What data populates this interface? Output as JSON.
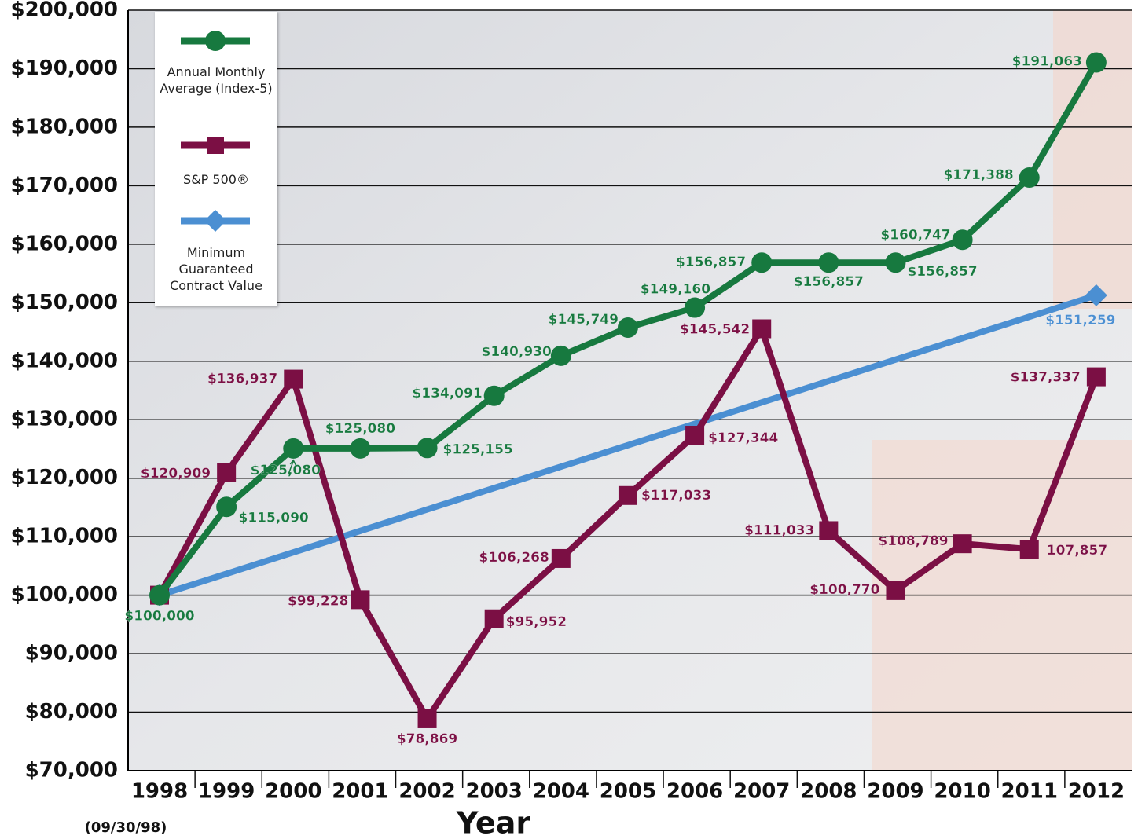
{
  "chart_data": {
    "type": "line",
    "x_label": "Year",
    "note": "(09/30/98)",
    "categories": [
      "1998",
      "1999",
      "2000",
      "2001",
      "2002",
      "2003",
      "2004",
      "2005",
      "2006",
      "2007",
      "2008",
      "2009",
      "2010",
      "2011",
      "2012"
    ],
    "ylim": [
      70000,
      200000
    ],
    "yticks": [
      {
        "value": 70000,
        "label": "$70,000"
      },
      {
        "value": 80000,
        "label": "$80,000"
      },
      {
        "value": 90000,
        "label": "$90,000"
      },
      {
        "value": 100000,
        "label": "$100,000"
      },
      {
        "value": 110000,
        "label": "$110,000"
      },
      {
        "value": 120000,
        "label": "$120,000"
      },
      {
        "value": 130000,
        "label": "$130,000"
      },
      {
        "value": 140000,
        "label": "$140,000"
      },
      {
        "value": 150000,
        "label": "$150,000"
      },
      {
        "value": 160000,
        "label": "$160,000"
      },
      {
        "value": 170000,
        "label": "$170,000"
      },
      {
        "value": 180000,
        "label": "$180,000"
      },
      {
        "value": 190000,
        "label": "$190,000"
      },
      {
        "value": 200000,
        "label": "$200,000"
      }
    ],
    "grid": true,
    "legend": "top-left",
    "series": [
      {
        "name": "Annual Monthly Average (Index-5)",
        "color": "#17793f",
        "marker": "circle",
        "values": [
          100000,
          115090,
          125080,
          125080,
          125155,
          134091,
          140930,
          145749,
          149160,
          156857,
          156857,
          156857,
          160747,
          171388,
          191063
        ],
        "value_labels": [
          "$100,000",
          "$115,090",
          "$125,080",
          "$125,080",
          "$125,155",
          "$134,091",
          "$140,930",
          "$145,749",
          "$149,160",
          "$156,857",
          "$156,857",
          "$156,857",
          "$160,747",
          "$171,388",
          "$191,063"
        ]
      },
      {
        "name": "S&P 500®",
        "color": "#7b0f44",
        "marker": "square",
        "values": [
          100000,
          120909,
          136937,
          99228,
          78869,
          95952,
          106268,
          117033,
          127344,
          145542,
          111033,
          100770,
          108789,
          107857,
          137337
        ],
        "value_labels": [
          null,
          "$120,909",
          "$136,937",
          "$99,228",
          "$78,869",
          "$95,952",
          "$106,268",
          "$117,033",
          "$127,344",
          "$145,542",
          "$111,033",
          "$100,770",
          "$108,789",
          "107,857",
          "$137,337"
        ]
      },
      {
        "name": "Minimum Guaranteed Contract Value",
        "color": "#4b8fd2",
        "marker": "diamond",
        "x": [
          "1998",
          "2012"
        ],
        "values": [
          100000,
          151259
        ],
        "value_labels": [
          null,
          "$151,259"
        ]
      }
    ]
  }
}
